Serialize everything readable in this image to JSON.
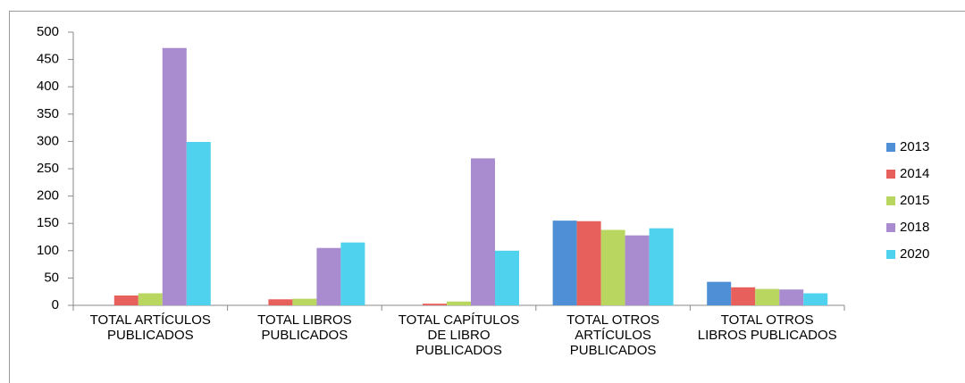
{
  "chart_data": {
    "type": "bar",
    "categories": [
      "TOTAL ARTÍCULOS PUBLICADOS",
      "TOTAL LIBROS PUBLICADOS",
      "TOTAL CAPÍTULOS DE LIBRO PUBLICADOS",
      "TOTAL OTROS ARTÍCULOS PUBLICADOS",
      "TOTAL OTROS LIBROS PUBLICADOS"
    ],
    "series": [
      {
        "name": "2013",
        "color": "#4f8fd6",
        "values": [
          0,
          0,
          0,
          155,
          43
        ]
      },
      {
        "name": "2014",
        "color": "#e8605c",
        "values": [
          18,
          11,
          3,
          154,
          33
        ]
      },
      {
        "name": "2015",
        "color": "#b8d660",
        "values": [
          22,
          12,
          7,
          138,
          30
        ]
      },
      {
        "name": "2018",
        "color": "#a98bcf",
        "values": [
          471,
          105,
          269,
          128,
          29
        ]
      },
      {
        "name": "2020",
        "color": "#4fd2ee",
        "values": [
          299,
          115,
          100,
          141,
          22
        ]
      }
    ],
    "ylim": [
      0,
      500
    ],
    "yticks": [
      0,
      50,
      100,
      150,
      200,
      250,
      300,
      350,
      400,
      450,
      500
    ],
    "grid": false,
    "legend": "right"
  }
}
